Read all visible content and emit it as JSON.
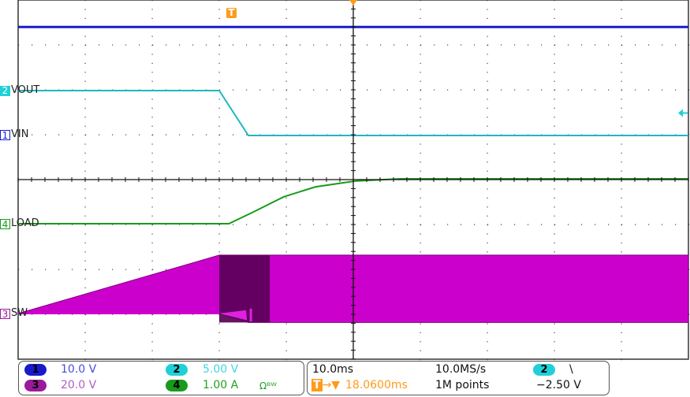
{
  "chart_data": {
    "type": "line",
    "title": "",
    "xlabel": "",
    "ylabel": "",
    "x_unit": "ms (relative to trigger)",
    "xlim": [
      -31.94,
      68.06
    ],
    "grid": true,
    "series": [
      {
        "name": "VIN",
        "channel": "1",
        "color": "#1a1acc",
        "scale": 10.0,
        "x": [
          -31.94,
          68.06
        ],
        "y": [
          24,
          24
        ]
      },
      {
        "name": "VOUT",
        "channel": "2",
        "color": "#20b8c0",
        "scale": 5.0,
        "x": [
          -31.94,
          -1.94,
          2.41,
          68.06
        ],
        "y": [
          0,
          0,
          -5,
          -5
        ]
      },
      {
        "name": "LOAD",
        "channel": "4",
        "color": "#1a9a1a",
        "scale": 1.0,
        "x": [
          -31.94,
          -0.5,
          3,
          7.7,
          12.4,
          18.3,
          25,
          68.06
        ],
        "y": [
          0,
          0,
          0.25,
          0.6,
          0.82,
          0.95,
          1.0,
          1.0
        ]
      },
      {
        "name": "SW",
        "channel": "3",
        "color": "#cc00cc",
        "scale": 20.0,
        "x": [
          -31.94,
          -1.94,
          2.41,
          5.6,
          68.06
        ],
        "y_max": [
          0,
          26,
          26,
          26,
          26
        ],
        "y_min": [
          0,
          0,
          -4,
          -4,
          -4
        ]
      }
    ]
  },
  "channels": {
    "ch1": {
      "num": "1",
      "label": "VIN",
      "scale": "10.0 V",
      "color": "#1a1acc"
    },
    "ch2": {
      "num": "2",
      "label": "VOUT",
      "scale": "5.00 V",
      "color": "#20d0d8"
    },
    "ch3": {
      "num": "3",
      "label": "SW",
      "scale": "20.0 V",
      "color": "#9a1a9a"
    },
    "ch4": {
      "num": "4",
      "label": "LOAD",
      "scale": "1.00 A",
      "color": "#1a9a1a",
      "bw_limit": "Ωᴮᵂ"
    }
  },
  "trigger": {
    "marker": "T",
    "position": "18.0600ms",
    "source": "2",
    "slope": "\\",
    "level": "−2.50 V",
    "color": "#ff9a1a"
  },
  "timebase": {
    "scale": "10.0ms",
    "sample_rate": "10.0MS/s",
    "record_length": "1M points"
  }
}
